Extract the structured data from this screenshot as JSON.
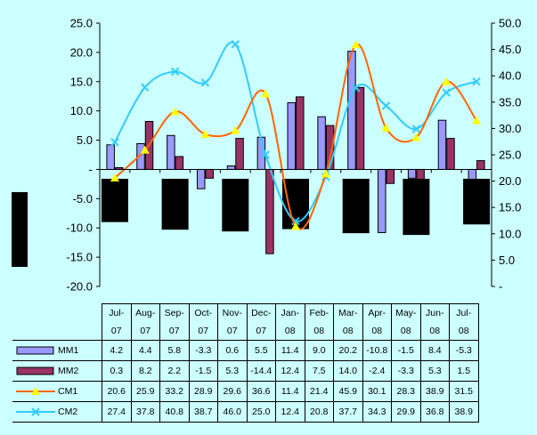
{
  "chart_data": {
    "type": "bar",
    "categories": [
      [
        "Jul-",
        "07"
      ],
      [
        "Aug-",
        "07"
      ],
      [
        "Sep-",
        "07"
      ],
      [
        "Oct-",
        "07"
      ],
      [
        "Nov-",
        "07"
      ],
      [
        "Dec-",
        "07"
      ],
      [
        "Jan-",
        "08"
      ],
      [
        "Feb-",
        "08"
      ],
      [
        "Mar-",
        "08"
      ],
      [
        "Apr-",
        "08"
      ],
      [
        "May-",
        "08"
      ],
      [
        "Jun-",
        "08"
      ],
      [
        "Jul-",
        "08"
      ]
    ],
    "left_axis": {
      "ylim": [
        -20,
        25
      ],
      "ticks": [
        25,
        20,
        15,
        10,
        5,
        0,
        -5,
        -10,
        -15,
        -20
      ],
      "tick_labels": [
        "25.0",
        "20.0",
        "15.0",
        "10.0",
        "5.0",
        "-",
        "-5.0",
        "-10.0",
        "-15.0",
        "-20.0"
      ]
    },
    "right_axis": {
      "ylim": [
        0,
        50
      ],
      "ticks": [
        50,
        45,
        40,
        35,
        30,
        25,
        20,
        15,
        10,
        5,
        0
      ],
      "tick_labels": [
        "50.0",
        "45.0",
        "40.0",
        "35.0",
        "30.0",
        "25.0",
        "20.0",
        "15.0",
        "10.0",
        "5.0",
        "-"
      ]
    },
    "series": [
      {
        "name": "MM1",
        "type": "bar",
        "axis": "left",
        "color": "#9999ff",
        "values": [
          4.2,
          4.4,
          5.8,
          -3.3,
          0.6,
          5.5,
          11.4,
          9.0,
          20.2,
          -10.8,
          -1.5,
          8.4,
          -5.3
        ],
        "labels": [
          "4.2",
          "4.4",
          "5.8",
          "-3.3",
          "0.6",
          "5.5",
          "11.4",
          "9.0",
          "20.2",
          "-10.8",
          "-1.5",
          "8.4",
          "-5.3"
        ]
      },
      {
        "name": "MM2",
        "type": "bar",
        "axis": "left",
        "color": "#993366",
        "values": [
          0.3,
          8.2,
          2.2,
          -1.5,
          5.3,
          -14.4,
          12.4,
          7.5,
          14.0,
          -2.4,
          -3.3,
          5.3,
          1.5
        ],
        "labels": [
          "0.3",
          "8.2",
          "2.2",
          "-1.5",
          "5.3",
          "-14.4",
          "12.4",
          "7.5",
          "14.0",
          "-2.4",
          "-3.3",
          "5.3",
          "1.5"
        ]
      },
      {
        "name": "CM1",
        "type": "line",
        "axis": "right",
        "color": "#ff6600",
        "marker": "triangle",
        "marker_color": "#ffff00",
        "values": [
          20.6,
          25.9,
          33.2,
          28.9,
          29.6,
          36.6,
          11.4,
          21.4,
          45.9,
          30.1,
          28.3,
          38.9,
          31.5
        ],
        "labels": [
          "20.6",
          "25.9",
          "33.2",
          "28.9",
          "29.6",
          "36.6",
          "11.4",
          "21.4",
          "45.9",
          "30.1",
          "28.3",
          "38.9",
          "31.5"
        ]
      },
      {
        "name": "CM2",
        "type": "line",
        "axis": "right",
        "color": "#33ccff",
        "marker": "x",
        "values": [
          27.4,
          37.8,
          40.8,
          38.7,
          46.0,
          25.0,
          12.4,
          20.8,
          37.7,
          34.3,
          29.9,
          36.8,
          38.9
        ],
        "labels": [
          "27.4",
          "37.8",
          "40.8",
          "38.7",
          "46.0",
          "25.0",
          "12.4",
          "20.8",
          "37.7",
          "34.3",
          "29.9",
          "36.8",
          "38.9"
        ]
      }
    ],
    "occlusion_blocks": [
      {
        "category_index": 0,
        "top": -1.6,
        "bottom": -9.0
      },
      {
        "category_index": 2,
        "top": -1.6,
        "bottom": -10.3
      },
      {
        "category_index": 4,
        "top": -1.6,
        "bottom": -10.6
      },
      {
        "category_index": 6,
        "top": -1.6,
        "bottom": -10.2
      },
      {
        "category_index": 8,
        "top": -1.6,
        "bottom": -10.9
      },
      {
        "category_index": 10,
        "top": -1.6,
        "bottom": -11.2
      },
      {
        "category_index": 12,
        "top": -1.6,
        "bottom": -9.4
      }
    ],
    "has_left_black_block": true,
    "grid": false,
    "legend": "in data table"
  }
}
